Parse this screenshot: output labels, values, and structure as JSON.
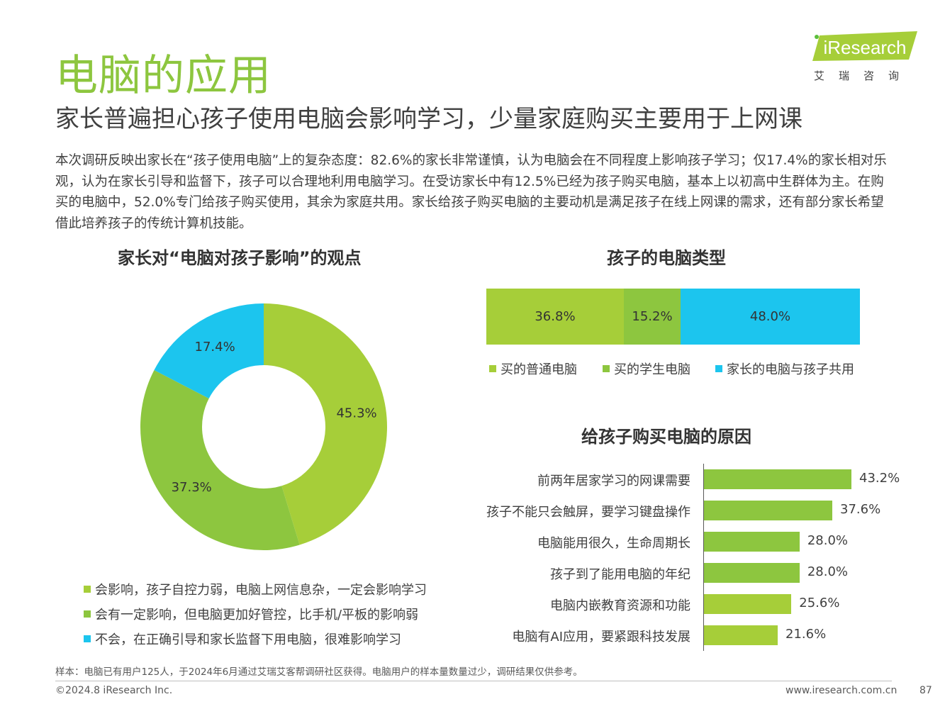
{
  "header": {
    "title": "电脑的应用",
    "subtitle": "家长普遍担心孩子使用电脑会影响学习，少量家庭购买主要用于上网课",
    "logo_text": "iResearch",
    "logo_cn": "艾瑞咨询"
  },
  "summary": "本次调研反映出家长在“孩子使用电脑”上的复杂态度：82.6%的家长非常谨慎，认为电脑会在不同程度上影响孩子学习；仅17.4%的家长相对乐观，认为在家长引导和监督下，孩子可以合理地利用电脑学习。在受访家长中有12.5%已经为孩子购买电脑，基本上以初高中生群体为主。在购买的电脑中，52.0%专门给孩子购买使用，其余为家庭共用。家长给孩子购买电脑的主要动机是满足孩子在线上网课的需求，还有部分家长希望借此培养孩子的传统计算机技能。",
  "chart_data": [
    {
      "type": "pie",
      "title": "家长对“电脑对孩子影响”的观点",
      "categories": [
        "会影响，孩子自控力弱，电脑上网信息杂，一定会影响学习",
        "会有一定影响，但电脑更加好管控，比手机/平板的影响弱",
        "不会，在正确引导和家长监督下用电脑，很难影响学习"
      ],
      "values": [
        45.3,
        37.3,
        17.4
      ],
      "labels": [
        "45.3%",
        "37.3%",
        "17.4%"
      ],
      "colors": [
        "#A6CE39",
        "#8DC63F",
        "#1CC5EE"
      ]
    },
    {
      "type": "bar",
      "orientation": "stacked-horizontal",
      "title": "孩子的电脑类型",
      "categories": [
        "买的普通电脑",
        "买的学生电脑",
        "家长的电脑与孩子共用"
      ],
      "values": [
        36.8,
        15.2,
        48.0
      ],
      "labels": [
        "36.8%",
        "15.2%",
        "48.0%"
      ],
      "colors": [
        "#A6CE39",
        "#8DC63F",
        "#1CC5EE"
      ]
    },
    {
      "type": "bar",
      "orientation": "horizontal",
      "title": "给孩子购买电脑的原因",
      "categories": [
        "前两年居家学习的网课需要",
        "孩子不能只会触屏，要学习键盘操作",
        "电脑能用很久，生命周期长",
        "孩子到了能用电脑的年纪",
        "电脑内嵌教育资源和功能",
        "电脑有AI应用，要紧跟科技发展"
      ],
      "values": [
        43.2,
        37.6,
        28.0,
        28.0,
        25.6,
        21.6
      ],
      "labels": [
        "43.2%",
        "37.6%",
        "28.0%",
        "28.0%",
        "25.6%",
        "21.6%"
      ],
      "colors": [
        "#8DC63F",
        "#8DC63F",
        "#8DC63F",
        "#8DC63F",
        "#A6CE39",
        "#A6CE39"
      ]
    }
  ],
  "footer": {
    "note": "样本：电脑已有用户125人，于2024年6月通过艾瑞艾客帮调研社区获得。电脑用户的样本量数量过少，调研结果仅供参考。",
    "copyright": "©2024.8 iResearch Inc.",
    "website": "www.iresearch.com.cn",
    "page": "87"
  }
}
